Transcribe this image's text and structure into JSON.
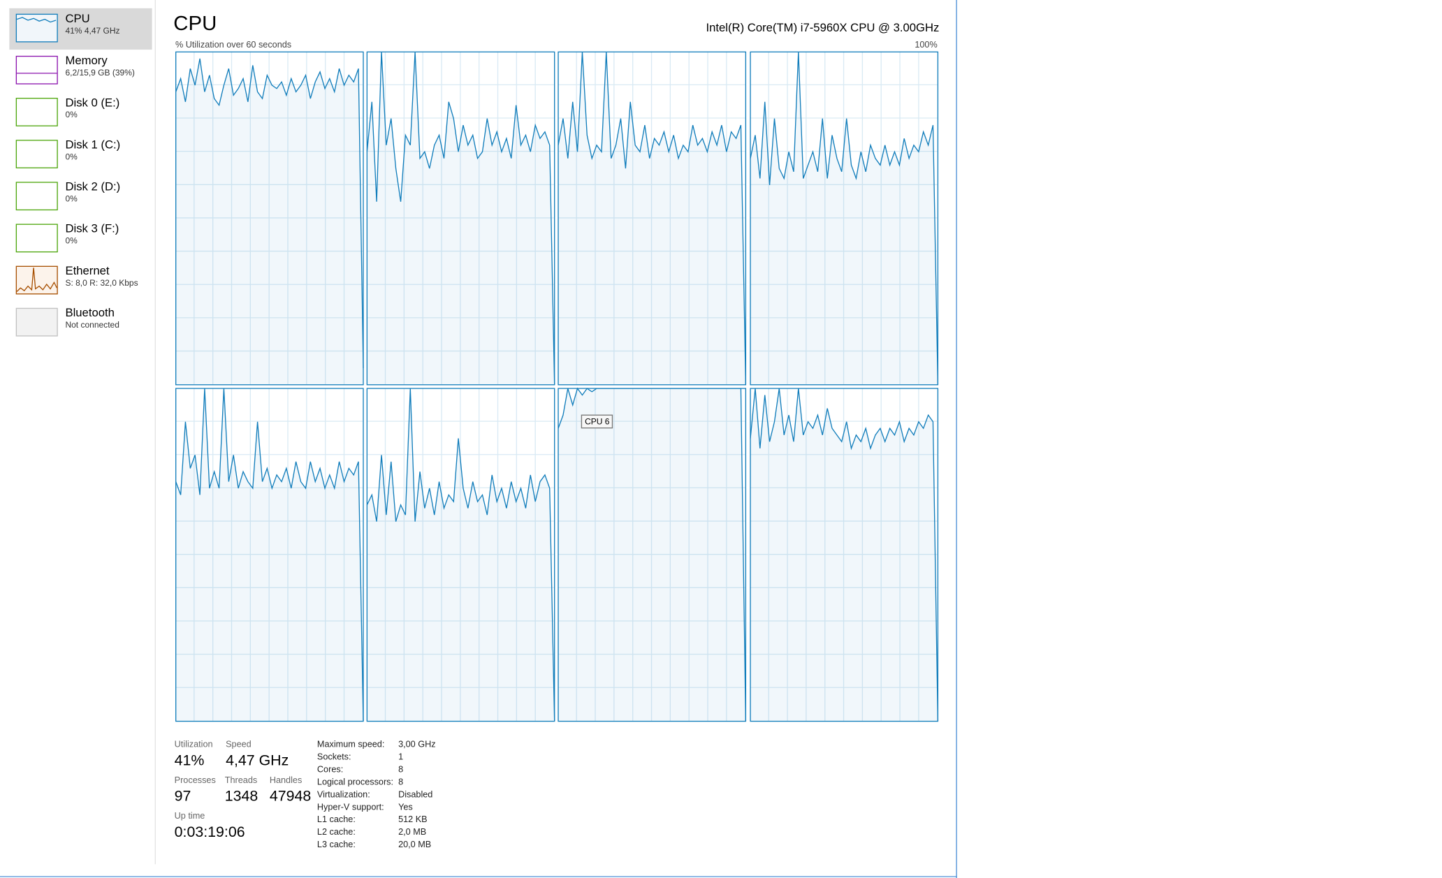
{
  "sidebar": [
    {
      "name": "CPU",
      "detail": "41% 4,47 GHz"
    },
    {
      "name": "Memory",
      "detail": "6,2/15,9 GB (39%)"
    },
    {
      "name": "Disk 0 (E:)",
      "detail": "0%"
    },
    {
      "name": "Disk 1 (C:)",
      "detail": "0%"
    },
    {
      "name": "Disk 2 (D:)",
      "detail": "0%"
    },
    {
      "name": "Disk 3 (F:)",
      "detail": "0%"
    },
    {
      "name": "Ethernet",
      "detail": "S: 8,0 R: 32,0 Kbps"
    },
    {
      "name": "Bluetooth",
      "detail": "Not connected"
    }
  ],
  "header": {
    "title": "CPU",
    "processor": "Intel(R) Core(TM) i7-5960X CPU @ 3.00GHz",
    "graph_label": "% Utilization over 60 seconds",
    "graph_max": "100%"
  },
  "graphs": {
    "ylim": [
      0,
      100
    ],
    "color": "#117dbb",
    "tooltip": "CPU 6",
    "cpus": [
      {
        "values": [
          88,
          92,
          85,
          95,
          90,
          98,
          88,
          93,
          86,
          84,
          90,
          95,
          87,
          89,
          92,
          85,
          96,
          88,
          86,
          93,
          90,
          89,
          91,
          87,
          92,
          88,
          90,
          93,
          86,
          91,
          94,
          89,
          92,
          88,
          95,
          90,
          93,
          91,
          95,
          5
        ]
      },
      {
        "values": [
          70,
          85,
          55,
          100,
          72,
          80,
          65,
          55,
          75,
          72,
          100,
          68,
          70,
          65,
          72,
          75,
          68,
          85,
          80,
          70,
          78,
          72,
          75,
          68,
          70,
          80,
          72,
          76,
          70,
          74,
          68,
          84,
          72,
          75,
          70,
          78,
          74,
          76,
          72,
          0
        ]
      },
      {
        "values": [
          72,
          80,
          68,
          85,
          70,
          100,
          75,
          68,
          72,
          70,
          100,
          68,
          72,
          80,
          65,
          85,
          72,
          70,
          78,
          68,
          74,
          72,
          76,
          70,
          75,
          68,
          72,
          70,
          78,
          72,
          74,
          70,
          76,
          72,
          78,
          70,
          76,
          74,
          78,
          0
        ]
      },
      {
        "values": [
          68,
          75,
          62,
          85,
          60,
          80,
          65,
          62,
          70,
          64,
          100,
          62,
          66,
          70,
          64,
          80,
          62,
          75,
          68,
          64,
          80,
          66,
          62,
          70,
          64,
          72,
          68,
          66,
          72,
          66,
          70,
          66,
          74,
          68,
          72,
          70,
          76,
          72,
          78,
          0
        ]
      },
      {
        "values": [
          72,
          68,
          90,
          76,
          80,
          68,
          100,
          70,
          75,
          70,
          100,
          72,
          80,
          70,
          75,
          72,
          70,
          90,
          72,
          76,
          70,
          74,
          72,
          76,
          70,
          78,
          72,
          70,
          78,
          72,
          76,
          70,
          74,
          70,
          78,
          72,
          76,
          74,
          78,
          0
        ]
      },
      {
        "values": [
          65,
          68,
          60,
          80,
          62,
          78,
          60,
          65,
          62,
          100,
          60,
          75,
          64,
          70,
          62,
          72,
          64,
          68,
          66,
          85,
          70,
          64,
          72,
          66,
          68,
          62,
          74,
          66,
          70,
          64,
          72,
          66,
          70,
          64,
          74,
          66,
          72,
          74,
          70,
          0
        ]
      },
      {
        "values": [
          88,
          92,
          100,
          95,
          100,
          98,
          100,
          99,
          100,
          100,
          100,
          100,
          100,
          100,
          100,
          100,
          100,
          100,
          100,
          100,
          100,
          100,
          100,
          100,
          100,
          100,
          100,
          100,
          100,
          100,
          100,
          100,
          100,
          100,
          100,
          100,
          100,
          100,
          100,
          0
        ]
      },
      {
        "values": [
          85,
          100,
          82,
          98,
          84,
          90,
          100,
          86,
          92,
          84,
          100,
          86,
          90,
          88,
          92,
          86,
          94,
          88,
          86,
          84,
          90,
          82,
          86,
          84,
          88,
          82,
          86,
          88,
          84,
          88,
          86,
          90,
          84,
          88,
          86,
          90,
          88,
          92,
          90,
          0
        ]
      }
    ]
  },
  "stats": {
    "utilization": {
      "label": "Utilization",
      "value": "41%"
    },
    "speed": {
      "label": "Speed",
      "value": "4,47 GHz"
    },
    "processes": {
      "label": "Processes",
      "value": "97"
    },
    "threads": {
      "label": "Threads",
      "value": "1348"
    },
    "handles": {
      "label": "Handles",
      "value": "47948"
    },
    "uptime": {
      "label": "Up time",
      "value": "0:03:19:06"
    }
  },
  "details": [
    [
      "Maximum speed:",
      "3,00 GHz"
    ],
    [
      "Sockets:",
      "1"
    ],
    [
      "Cores:",
      "8"
    ],
    [
      "Logical processors:",
      "8"
    ],
    [
      "Virtualization:",
      "Disabled"
    ],
    [
      "Hyper-V support:",
      "Yes"
    ],
    [
      "L1 cache:",
      "512 KB"
    ],
    [
      "L2 cache:",
      "2,0 MB"
    ],
    [
      "L3 cache:",
      "20,0 MB"
    ]
  ]
}
